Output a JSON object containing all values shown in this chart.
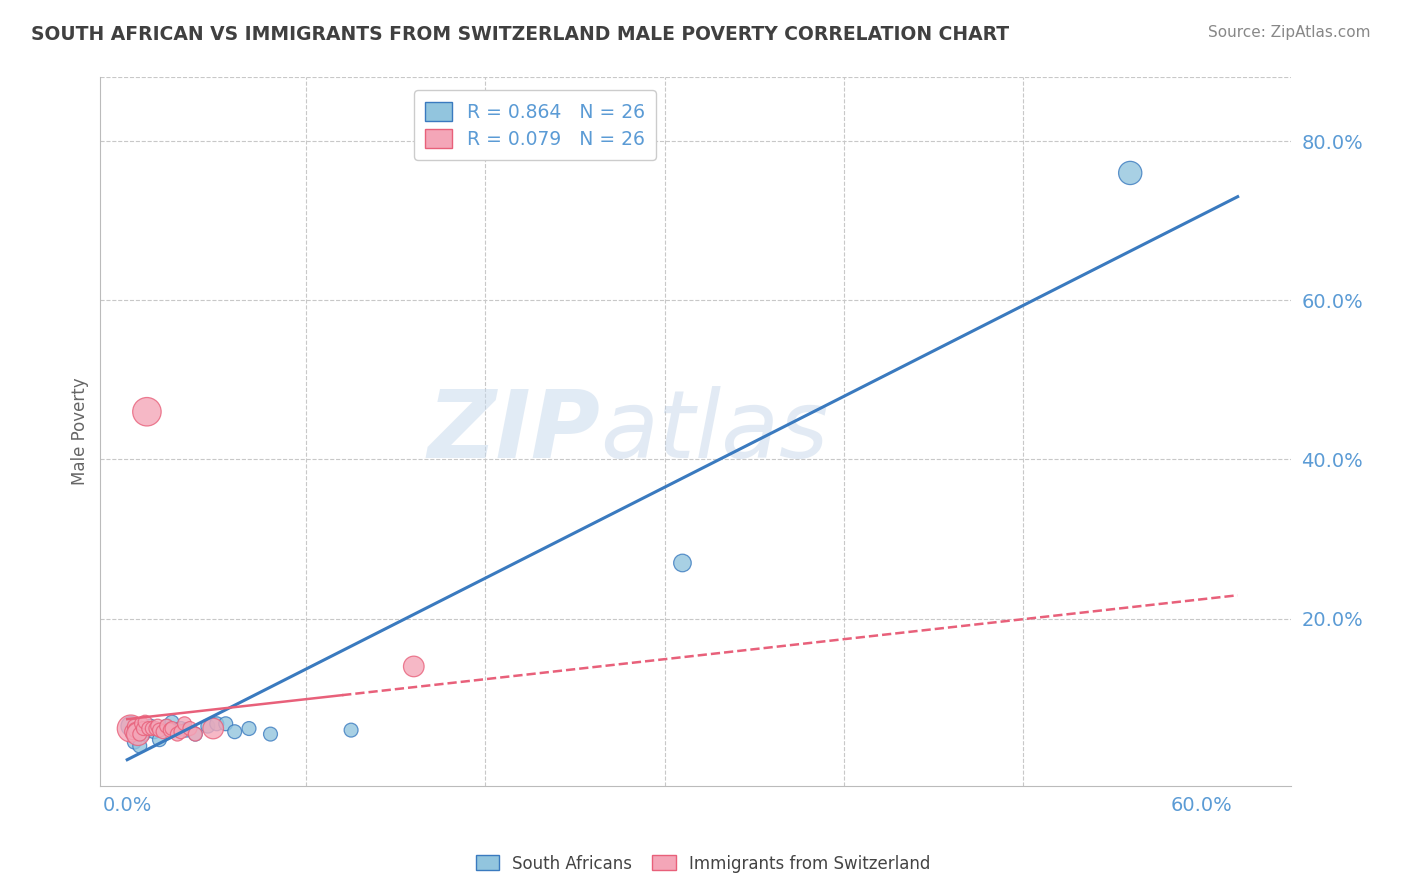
{
  "title": "SOUTH AFRICAN VS IMMIGRANTS FROM SWITZERLAND MALE POVERTY CORRELATION CHART",
  "source": "Source: ZipAtlas.com",
  "ylabel_ticks": [
    "20.0%",
    "40.0%",
    "60.0%",
    "80.0%"
  ],
  "ylabel_tick_vals": [
    0.2,
    0.4,
    0.6,
    0.8
  ],
  "xlabel_ticks": [
    "0.0%",
    "60.0%"
  ],
  "xlabel_tick_vals": [
    0.0,
    0.6
  ],
  "xlim": [
    -0.015,
    0.65
  ],
  "ylim": [
    -0.01,
    0.88
  ],
  "legend_r1": "R = 0.864   N = 26",
  "legend_r2": "R = 0.079   N = 26",
  "ylabel_label": "Male Poverty",
  "watermark_zip": "ZIP",
  "watermark_atlas": "atlas",
  "blue_color": "#92c5de",
  "pink_color": "#f4a6b8",
  "blue_line_color": "#3a7abf",
  "pink_line_color": "#e8607a",
  "blue_scatter": [
    [
      0.002,
      0.065
    ],
    [
      0.003,
      0.055
    ],
    [
      0.004,
      0.045
    ],
    [
      0.005,
      0.055
    ],
    [
      0.006,
      0.06
    ],
    [
      0.007,
      0.04
    ],
    [
      0.009,
      0.055
    ],
    [
      0.011,
      0.06
    ],
    [
      0.013,
      0.065
    ],
    [
      0.015,
      0.058
    ],
    [
      0.018,
      0.048
    ],
    [
      0.022,
      0.065
    ],
    [
      0.025,
      0.07
    ],
    [
      0.028,
      0.06
    ],
    [
      0.03,
      0.062
    ],
    [
      0.033,
      0.06
    ],
    [
      0.038,
      0.055
    ],
    [
      0.045,
      0.065
    ],
    [
      0.05,
      0.068
    ],
    [
      0.055,
      0.068
    ],
    [
      0.06,
      0.058
    ],
    [
      0.068,
      0.062
    ],
    [
      0.08,
      0.055
    ],
    [
      0.125,
      0.06
    ],
    [
      0.31,
      0.27
    ],
    [
      0.56,
      0.76
    ]
  ],
  "pink_scatter": [
    [
      0.002,
      0.062
    ],
    [
      0.003,
      0.058
    ],
    [
      0.004,
      0.065
    ],
    [
      0.005,
      0.06
    ],
    [
      0.006,
      0.055
    ],
    [
      0.007,
      0.055
    ],
    [
      0.008,
      0.068
    ],
    [
      0.009,
      0.062
    ],
    [
      0.01,
      0.07
    ],
    [
      0.011,
      0.46
    ],
    [
      0.012,
      0.062
    ],
    [
      0.014,
      0.062
    ],
    [
      0.016,
      0.062
    ],
    [
      0.017,
      0.065
    ],
    [
      0.018,
      0.06
    ],
    [
      0.02,
      0.058
    ],
    [
      0.022,
      0.065
    ],
    [
      0.024,
      0.06
    ],
    [
      0.025,
      0.062
    ],
    [
      0.028,
      0.055
    ],
    [
      0.03,
      0.058
    ],
    [
      0.032,
      0.068
    ],
    [
      0.035,
      0.062
    ],
    [
      0.038,
      0.055
    ],
    [
      0.048,
      0.062
    ],
    [
      0.16,
      0.14
    ]
  ],
  "blue_sizes": [
    200,
    100,
    100,
    100,
    100,
    100,
    100,
    100,
    100,
    100,
    100,
    100,
    100,
    100,
    100,
    100,
    100,
    100,
    100,
    100,
    100,
    100,
    100,
    100,
    160,
    280
  ],
  "pink_sizes": [
    380,
    130,
    100,
    130,
    270,
    100,
    100,
    100,
    100,
    420,
    100,
    100,
    100,
    100,
    100,
    100,
    100,
    100,
    100,
    100,
    100,
    100,
    100,
    100,
    220,
    220
  ],
  "background_color": "#ffffff",
  "grid_color": "#c8c8c8",
  "title_color": "#404040",
  "axis_color": "#5b9bd5"
}
